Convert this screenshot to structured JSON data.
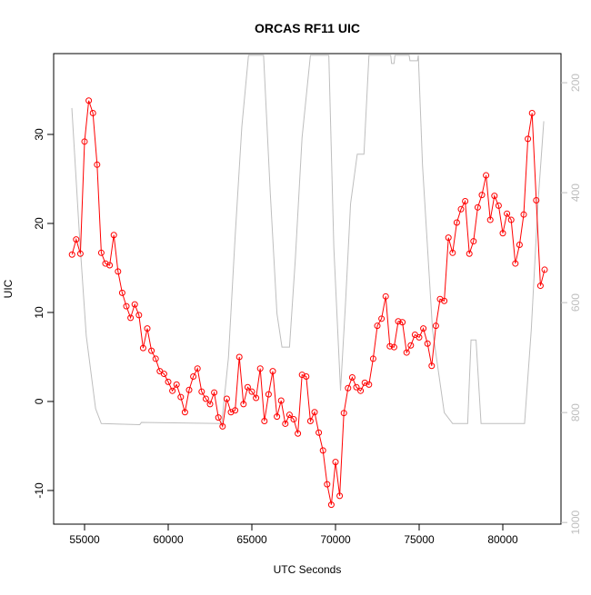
{
  "chart_data": {
    "type": "line",
    "title": "ORCAS RF11 UIC",
    "x_label": "UTC Seconds",
    "y_label": "UIC",
    "xlim": [
      53152,
      83478
    ],
    "xticks": [
      55000,
      60000,
      65000,
      70000,
      75000,
      80000
    ],
    "ylim": [
      -13.78,
      39.08
    ],
    "yticks": [
      -10,
      0,
      10,
      20,
      30
    ],
    "y2lim": [
      1003,
      147
    ],
    "y2ticks": [
      200,
      400,
      600,
      800,
      1000
    ],
    "series": [
      {
        "color": "#ff0000",
        "markers": true,
        "x": [
          54250,
          54500,
          54750,
          55000,
          55250,
          55500,
          55750,
          56000,
          56250,
          56500,
          56750,
          57000,
          57250,
          57500,
          57750,
          58000,
          58250,
          58500,
          58750,
          59000,
          59250,
          59500,
          59750,
          60000,
          60250,
          60500,
          60750,
          61000,
          61250,
          61500,
          61750,
          62000,
          62250,
          62500,
          62750,
          63000,
          63250,
          63500,
          63750,
          64000,
          64250,
          64500,
          64750,
          65000,
          65250,
          65500,
          65750,
          66000,
          66250,
          66500,
          66750,
          67000,
          67250,
          67500,
          67750,
          68000,
          68250,
          68500,
          68750,
          69000,
          69250,
          69500,
          69750,
          70000,
          70250,
          70500,
          70750,
          71000,
          71250,
          71500,
          71750,
          72000,
          72250,
          72500,
          72750,
          73000,
          73250,
          73500,
          73750,
          74000,
          74250,
          74500,
          74750,
          75000,
          75250,
          75500,
          75750,
          76000,
          76250,
          76500,
          76750,
          77000,
          77250,
          77500,
          77750,
          78000,
          78250,
          78500,
          78750,
          79000,
          79250,
          79500,
          79750,
          80000,
          80250,
          80500,
          80750,
          81000,
          81250,
          81500,
          81750,
          82000,
          82250,
          82500
        ],
        "values": [
          16.5,
          18.2,
          16.6,
          29.2,
          33.8,
          32.4,
          26.6,
          16.7,
          15.5,
          15.3,
          18.7,
          14.6,
          12.2,
          10.7,
          9.4,
          10.9,
          9.7,
          6,
          8.2,
          5.7,
          4.8,
          3.4,
          3.1,
          2.2,
          1.2,
          1.9,
          0.5,
          -1.2,
          1.3,
          2.8,
          3.7,
          1.1,
          0.3,
          -0.3,
          1,
          -1.8,
          -2.8,
          0.3,
          -1.2,
          -1,
          5,
          -0.3,
          1.6,
          1.1,
          0.4,
          3.7,
          -2.2,
          0.8,
          3.4,
          -1.7,
          0.1,
          -2.5,
          -1.5,
          -2,
          -3.6,
          3,
          2.8,
          -2.2,
          -1.2,
          -3.5,
          -5.5,
          -9.3,
          -11.6,
          -6.8,
          -10.6,
          -1.3,
          1.5,
          2.7,
          1.6,
          1.2,
          2.1,
          1.9,
          4.8,
          8.5,
          9.3,
          11.8,
          6.2,
          6.1,
          9,
          8.9,
          5.5,
          6.3,
          7.5,
          7.2,
          8.2,
          6.5,
          4,
          8.5,
          11.5,
          11.3,
          18.4,
          16.7,
          20.1,
          21.6,
          22.5,
          16.6,
          18,
          21.8,
          23.2,
          25.4,
          20.4,
          23.1,
          22,
          18.9,
          21.1,
          20.4,
          15.5,
          17.6,
          21,
          29.5,
          32.4,
          22.6,
          13,
          14.8
        ]
      },
      {
        "color": "#bebebe",
        "axis": "y2",
        "markers": false,
        "x": [
          54240,
          54700,
          55100,
          55660,
          56000,
          58300,
          58400,
          63200,
          63600,
          64000,
          64400,
          64800,
          65700,
          66100,
          66500,
          66800,
          67250,
          67600,
          68000,
          68500,
          69600,
          69900,
          70300,
          70600,
          70900,
          71300,
          71700,
          72000,
          73300,
          73350,
          73500,
          73550,
          74400,
          74450,
          74900,
          74950,
          75200,
          75800,
          76500,
          77000,
          77900,
          78100,
          78400,
          78700,
          81300,
          81700,
          82100,
          82450
        ],
        "values": [
          246,
          480,
          660,
          793,
          820,
          822,
          818,
          820,
          700,
          480,
          280,
          150,
          150,
          400,
          620,
          681,
          681,
          520,
          300,
          150,
          150,
          500,
          760,
          600,
          420,
          330,
          330,
          150,
          150,
          165,
          165,
          150,
          150,
          160,
          160,
          150,
          350,
          650,
          800,
          820,
          820,
          668,
          668,
          820,
          820,
          650,
          420,
          270
        ]
      }
    ]
  }
}
